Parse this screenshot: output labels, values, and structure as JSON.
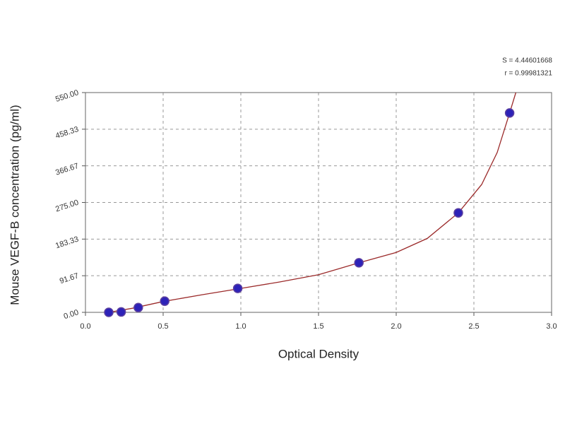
{
  "chart_data": {
    "type": "scatter",
    "x_label": "Optical Density",
    "y_label": "Mouse VEGF-B concentration (pg/ml)",
    "annotations": [
      "S = 4.44601668",
      "r = 0.99981321"
    ],
    "x": [
      0.15,
      0.23,
      0.34,
      0.51,
      0.98,
      1.76,
      2.4,
      2.73
    ],
    "values": [
      0,
      1,
      12,
      28,
      60,
      124,
      249,
      499
    ],
    "color": "#2d22b8",
    "fit": {
      "color": "#9b2a2a",
      "x": [
        0.15,
        0.3,
        0.5,
        0.75,
        1.0,
        1.25,
        1.5,
        1.76,
        2.0,
        2.2,
        2.4,
        2.55,
        2.65,
        2.73,
        2.77
      ],
      "values": [
        0,
        10,
        27,
        44,
        60,
        76,
        94,
        124,
        150,
        185,
        249,
        320,
        400,
        499,
        550
      ]
    },
    "xlim": [
      0,
      3
    ],
    "ylim": [
      0,
      550
    ],
    "xticks": [
      {
        "value": 0,
        "label": "0.0"
      },
      0.5,
      {
        "value": 1,
        "label": "1.0"
      },
      1.5,
      {
        "value": 2,
        "label": "2.0"
      },
      2.5,
      {
        "value": 3,
        "label": "3.0"
      }
    ],
    "yticks": [
      {
        "value": 0,
        "label": "0.00"
      },
      91.67,
      183.33,
      {
        "value": 275,
        "label": "275.00"
      },
      366.67,
      458.33,
      {
        "value": 550,
        "label": "550.00"
      }
    ],
    "grid": true
  }
}
